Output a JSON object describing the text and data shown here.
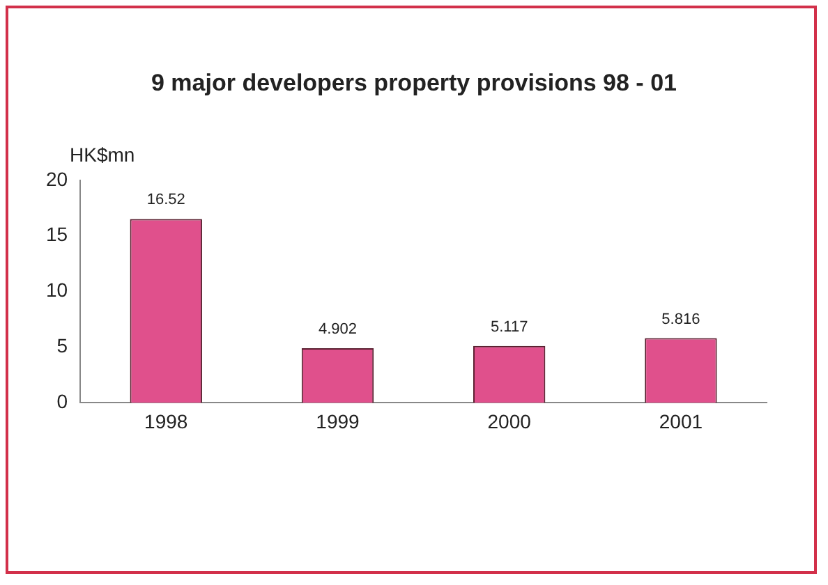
{
  "chart_data": {
    "type": "bar",
    "title": "9 major developers property provisions 98 - 01",
    "ylabel": "HK$mn",
    "categories": [
      "1998",
      "1999",
      "2000",
      "2001"
    ],
    "values": [
      16.52,
      4.902,
      5.117,
      5.816
    ],
    "color": "#e0508c",
    "ylim": [
      0,
      20
    ],
    "yticks": [
      0,
      5,
      10,
      15,
      20
    ],
    "grid": false,
    "legend": false,
    "data_labels": true
  }
}
